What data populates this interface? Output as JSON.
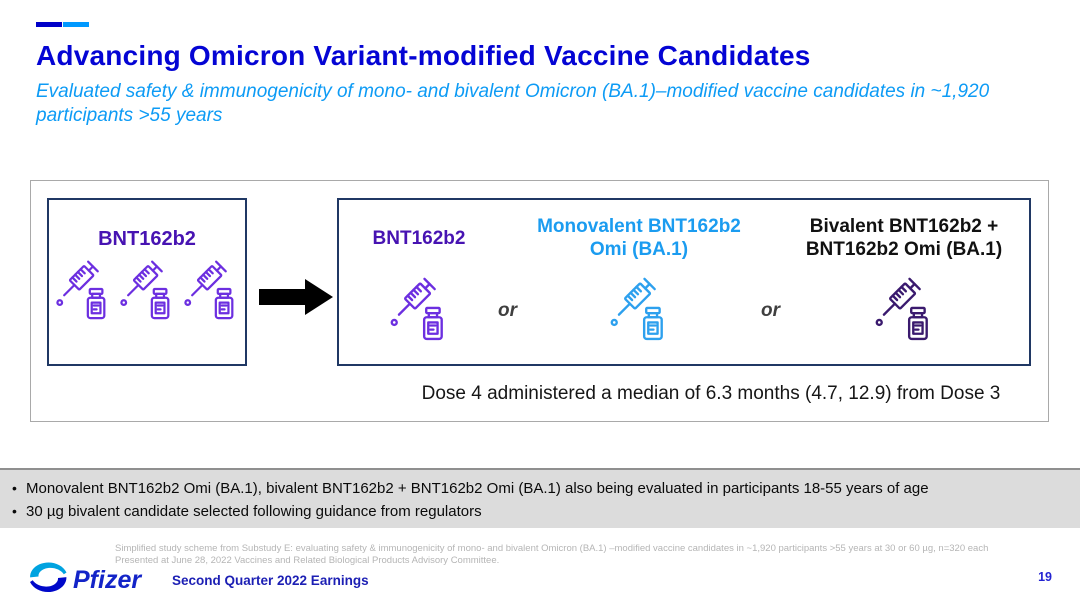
{
  "header": {
    "accent_colors": [
      "#0000c8",
      "#0099ff"
    ],
    "title": "Advancing Omicron Variant-modified Vaccine Candidates",
    "subtitle": "Evaluated safety & immunogenicity of mono- and bivalent Omicron (BA.1)–modified vaccine candidates in ~1,920 participants >55 years"
  },
  "diagram": {
    "left_box": {
      "label": "BNT162b2",
      "label_color": "#4713b2",
      "icon_color": "#6c2fe0"
    },
    "arrow_color": "#000000",
    "right_box": {
      "separator": "or",
      "options": [
        {
          "label": "BNT162b2",
          "label_color": "#4713b2",
          "icon_color": "#6c2fe0"
        },
        {
          "label": "Monovalent BNT162b2 Omi (BA.1)",
          "label_color": "#1b9cf0",
          "icon_color": "#2da0ee"
        },
        {
          "label": "Bivalent BNT162b2 + BNT162b2 Omi (BA.1)",
          "label_color": "#111111",
          "icon_color": "#3a1a6e"
        }
      ]
    },
    "dose_note": "Dose 4 administered a median of 6.3 months (4.7, 12.9) from Dose 3"
  },
  "bullets": [
    "Monovalent BNT162b2 Omi (BA.1), bivalent BNT162b2 + BNT162b2 Omi (BA.1) also being evaluated in participants 18-55 years of age",
    "30 µg bivalent candidate selected following guidance from regulators"
  ],
  "footer": {
    "footnote_lines": [
      "Simplified study scheme from Substudy E: evaluating safety & immunogenicity of mono- and bivalent Omicron (BA.1) –modified vaccine candidates in ~1,920 participants >55 years at 30 or 60 µg, n=320 each",
      "Presented at June 28, 2022 Vaccines and Related Biological Products Advisory Committee."
    ],
    "brand": "Pfizer",
    "earnings_label": "Second Quarter 2022 Earnings",
    "page_number": "19"
  }
}
